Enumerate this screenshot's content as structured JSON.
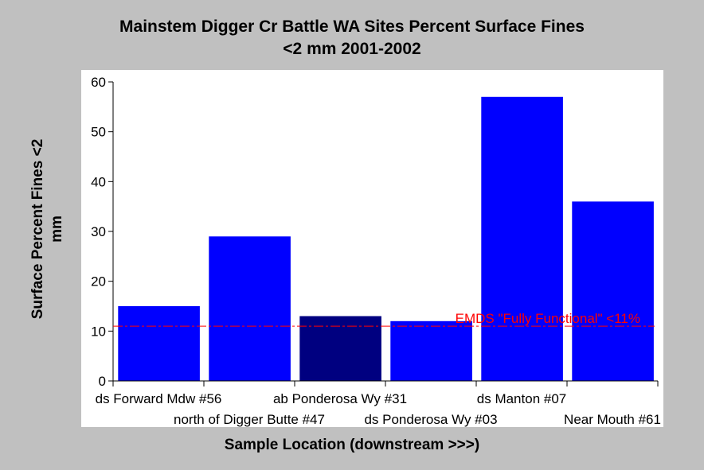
{
  "chart_data": {
    "type": "bar",
    "title_line1": "Mainstem Digger Cr Battle WA Sites Percent Surface Fines",
    "title_line2": "<2 mm 2001-2002",
    "xlabel": "Sample Location (downstream >>>)",
    "ylabel_line1": "Surface Percent Fines <2",
    "ylabel_line2": "mm",
    "categories": [
      "ds Forward Mdw #56",
      "north of Digger Butte #47",
      "ab Ponderosa Wy #31",
      "ds Ponderosa Wy #03",
      "ds Manton #07",
      "Near Mouth #61"
    ],
    "values": [
      15,
      29,
      13,
      12,
      57,
      36
    ],
    "bar_colors": [
      "#0000ff",
      "#0000ff",
      "#000080",
      "#0000ff",
      "#0000ff",
      "#0000ff"
    ],
    "ylim": [
      0,
      60
    ],
    "yticks": [
      0,
      10,
      20,
      30,
      40,
      50,
      60
    ],
    "reference_line": {
      "value": 11,
      "label": "EMDS \"Fully Functional\" <11%",
      "color": "#ff0000"
    },
    "grid": false,
    "legend": "none"
  }
}
